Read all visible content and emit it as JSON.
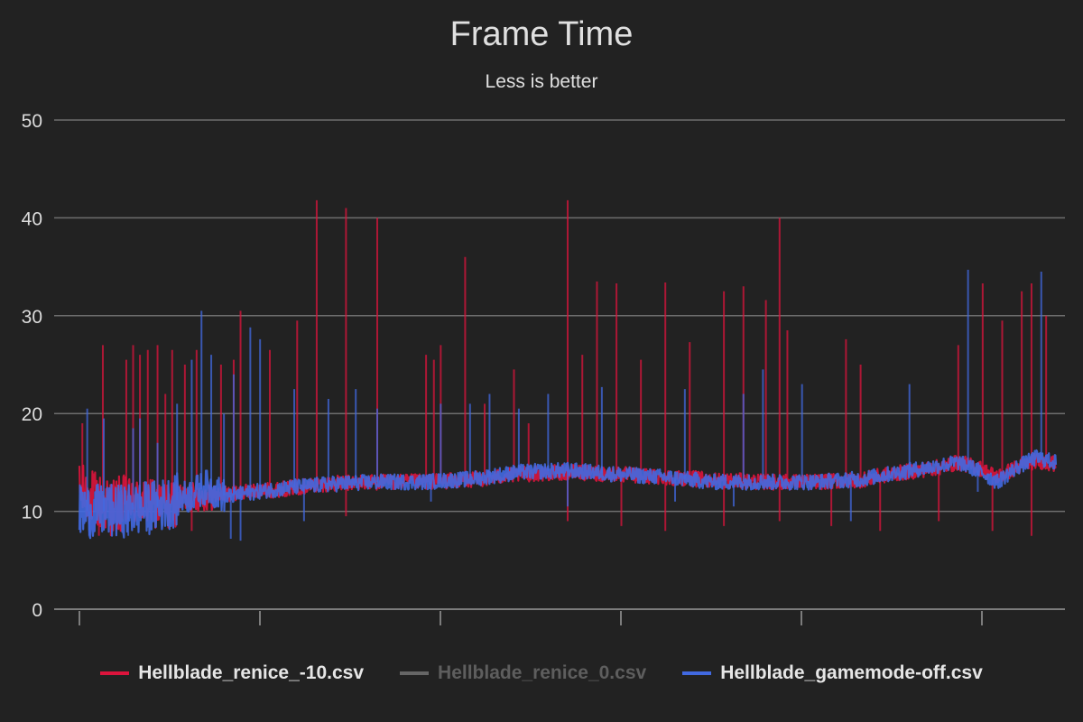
{
  "chart_data": {
    "type": "line",
    "title": "Frame Time",
    "subtitle": "Less is better",
    "xlabel": "",
    "ylabel": "",
    "ylim": [
      0,
      50
    ],
    "yticks": [
      "0",
      "10",
      "20",
      "30",
      "40",
      "50"
    ],
    "xticks_count": 6,
    "grid": true,
    "legend_position": "bottom",
    "series": [
      {
        "name": "Hellblade_renice_-10.csv",
        "color": "#dc143c",
        "enabled": true,
        "baseline": [
          [
            0,
            12.0
          ],
          [
            3,
            10.5
          ],
          [
            6,
            11.0
          ],
          [
            9,
            10.5
          ],
          [
            11,
            11.5
          ],
          [
            13,
            11.5
          ],
          [
            15,
            11.8
          ],
          [
            20,
            12.2
          ],
          [
            25,
            12.8
          ],
          [
            30,
            13.0
          ],
          [
            35,
            13.0
          ],
          [
            40,
            13.2
          ],
          [
            45,
            13.8
          ],
          [
            50,
            14.0
          ],
          [
            55,
            13.8
          ],
          [
            60,
            13.5
          ],
          [
            65,
            13.2
          ],
          [
            70,
            13.0
          ],
          [
            75,
            13.0
          ],
          [
            80,
            13.2
          ],
          [
            83,
            13.8
          ],
          [
            86,
            14.2
          ],
          [
            88,
            14.5
          ],
          [
            90,
            15.0
          ],
          [
            92,
            14.5
          ],
          [
            94,
            13.5
          ],
          [
            96,
            14.5
          ],
          [
            98,
            15.2
          ],
          [
            100,
            14.8
          ]
        ],
        "noise_bands": [
          [
            0,
            5,
            6.0
          ],
          [
            5,
            10,
            5.0
          ],
          [
            10,
            14,
            3.0
          ],
          [
            14,
            100,
            1.6
          ]
        ],
        "spikes": [
          [
            0.3,
            19
          ],
          [
            2.4,
            27
          ],
          [
            4.8,
            25.5
          ],
          [
            5.5,
            27
          ],
          [
            6.2,
            26
          ],
          [
            7.0,
            26.5
          ],
          [
            8.0,
            27
          ],
          [
            8.8,
            22
          ],
          [
            9.5,
            26.5
          ],
          [
            10.8,
            25
          ],
          [
            12.0,
            26.5
          ],
          [
            14.5,
            25
          ],
          [
            15.8,
            25.5
          ],
          [
            16.5,
            30.5
          ],
          [
            19.5,
            26.5
          ],
          [
            22.3,
            29.5
          ],
          [
            24.3,
            41.8
          ],
          [
            27.3,
            41
          ],
          [
            30.5,
            40
          ],
          [
            35.5,
            26
          ],
          [
            36.3,
            25.5
          ],
          [
            37.0,
            27
          ],
          [
            39.5,
            36
          ],
          [
            41.5,
            21
          ],
          [
            44.5,
            24.5
          ],
          [
            46.0,
            19
          ],
          [
            50.0,
            41.8
          ],
          [
            51.5,
            26
          ],
          [
            53.0,
            33.5
          ],
          [
            55.0,
            33.3
          ],
          [
            57.5,
            25.5
          ],
          [
            60.0,
            33.4
          ],
          [
            62.5,
            27.3
          ],
          [
            66.0,
            32.5
          ],
          [
            68.0,
            33
          ],
          [
            70.3,
            31.6
          ],
          [
            71.7,
            40
          ],
          [
            72.5,
            28.5
          ],
          [
            78.5,
            27.6
          ],
          [
            80.0,
            25
          ],
          [
            90.0,
            27
          ],
          [
            92.5,
            33.3
          ],
          [
            94.5,
            29.5
          ],
          [
            96.5,
            32.5
          ],
          [
            97.5,
            33.3
          ],
          [
            99.0,
            30
          ]
        ],
        "dips": [
          [
            2.0,
            7.5
          ],
          [
            11.5,
            8.0
          ],
          [
            27.3,
            9.5
          ],
          [
            50.0,
            9.0
          ],
          [
            55.5,
            8.5
          ],
          [
            60.0,
            8.0
          ],
          [
            66.0,
            8.5
          ],
          [
            71.7,
            9.0
          ],
          [
            77.0,
            8.5
          ],
          [
            82.0,
            8.0
          ],
          [
            88.0,
            9.0
          ],
          [
            93.5,
            8.0
          ],
          [
            97.5,
            7.5
          ]
        ]
      },
      {
        "name": "Hellblade_renice_0.csv",
        "color": "#666666",
        "enabled": false
      },
      {
        "name": "Hellblade_gamemode-off.csv",
        "color": "#4169e1",
        "enabled": true,
        "baseline": [
          [
            0,
            10.0
          ],
          [
            4,
            10.0
          ],
          [
            8,
            10.5
          ],
          [
            11,
            11.5
          ],
          [
            13,
            12.5
          ],
          [
            15,
            11.5
          ],
          [
            18,
            12.0
          ],
          [
            22,
            12.5
          ],
          [
            26,
            12.8
          ],
          [
            30,
            13.0
          ],
          [
            35,
            13.0
          ],
          [
            40,
            13.3
          ],
          [
            45,
            14.0
          ],
          [
            50,
            14.2
          ],
          [
            55,
            13.8
          ],
          [
            60,
            13.5
          ],
          [
            65,
            13.0
          ],
          [
            70,
            13.0
          ],
          [
            75,
            13.0
          ],
          [
            80,
            13.3
          ],
          [
            84,
            14.0
          ],
          [
            87,
            14.5
          ],
          [
            90,
            15.0
          ],
          [
            92,
            14.2
          ],
          [
            94,
            13.0
          ],
          [
            96,
            14.5
          ],
          [
            98,
            15.5
          ],
          [
            100,
            15.0
          ]
        ],
        "noise_bands": [
          [
            0,
            10,
            5.5
          ],
          [
            10,
            15,
            3.5
          ],
          [
            15,
            100,
            1.6
          ]
        ],
        "spikes": [
          [
            0.8,
            20.5
          ],
          [
            2.5,
            19.5
          ],
          [
            5.5,
            18.5
          ],
          [
            6.2,
            19.5
          ],
          [
            8.0,
            17
          ],
          [
            10.0,
            21
          ],
          [
            11.5,
            25.5
          ],
          [
            12.5,
            30.5
          ],
          [
            13.5,
            26
          ],
          [
            14.8,
            20
          ],
          [
            15.8,
            24
          ],
          [
            17.5,
            28.8
          ],
          [
            18.5,
            27.6
          ],
          [
            22.0,
            22.5
          ],
          [
            25.5,
            21.5
          ],
          [
            28.3,
            22.5
          ],
          [
            30.5,
            20.5
          ],
          [
            37.0,
            21
          ],
          [
            40.0,
            21
          ],
          [
            42.0,
            22
          ],
          [
            45.0,
            20.5
          ],
          [
            48.0,
            22
          ],
          [
            53.5,
            22.7
          ],
          [
            62.0,
            22.5
          ],
          [
            68.0,
            22
          ],
          [
            70.0,
            24.5
          ],
          [
            74.0,
            23
          ],
          [
            85.0,
            23
          ],
          [
            91.0,
            34.7
          ],
          [
            98.5,
            34.5
          ]
        ],
        "dips": [
          [
            1.0,
            7.5
          ],
          [
            5.0,
            7.5
          ],
          [
            15.5,
            7.2
          ],
          [
            16.5,
            7.0
          ],
          [
            23.0,
            9.0
          ],
          [
            36.0,
            11.0
          ],
          [
            50.0,
            10.5
          ],
          [
            61.0,
            11.0
          ],
          [
            67.0,
            10.5
          ],
          [
            79.0,
            9.0
          ],
          [
            92.0,
            12.0
          ]
        ]
      }
    ]
  }
}
